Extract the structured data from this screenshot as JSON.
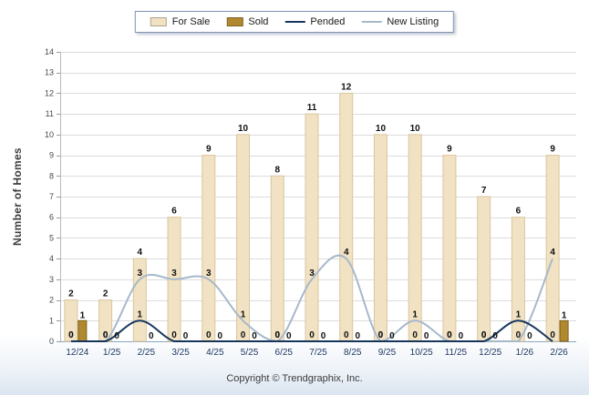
{
  "legend": {
    "items": [
      {
        "label": "For Sale",
        "type": "bar",
        "color": "#F1E2C3"
      },
      {
        "label": "Sold",
        "type": "bar",
        "color": "#B0882F"
      },
      {
        "label": "Pended",
        "type": "line",
        "color": "#16365C"
      },
      {
        "label": "New Listing",
        "type": "line",
        "color": "#A7B8CB"
      }
    ]
  },
  "footer": {
    "copyright": "Copyright © Trendgraphix, Inc."
  },
  "chart_data": {
    "type": "bar+line",
    "title": "",
    "categories": [
      "12/24",
      "1/25",
      "2/25",
      "3/25",
      "4/25",
      "5/25",
      "6/25",
      "7/25",
      "8/25",
      "9/25",
      "10/25",
      "11/25",
      "12/25",
      "1/26",
      "2/26"
    ],
    "series": [
      {
        "name": "For Sale",
        "type": "bar",
        "color": "#F1E2C3",
        "border": "#D9C69C",
        "values": [
          2,
          2,
          4,
          6,
          9,
          10,
          8,
          11,
          12,
          10,
          10,
          9,
          7,
          6,
          9
        ]
      },
      {
        "name": "Sold",
        "type": "bar",
        "color": "#B0882F",
        "border": "#7D6218",
        "values": [
          1,
          0,
          0,
          0,
          0,
          0,
          0,
          0,
          0,
          0,
          0,
          0,
          0,
          0,
          1
        ]
      },
      {
        "name": "Pended",
        "type": "line",
        "color": "#16365C",
        "values": [
          0,
          0,
          1,
          0,
          0,
          0,
          0,
          0,
          0,
          0,
          0,
          0,
          0,
          1,
          0
        ]
      },
      {
        "name": "New Listing",
        "type": "line",
        "color": "#A7B8CB",
        "values": [
          0,
          0,
          3,
          3,
          3,
          1,
          0,
          3,
          4,
          0,
          1,
          0,
          0,
          0,
          4
        ]
      }
    ],
    "xlabel": "",
    "ylabel": "Number of Homes",
    "ylim": [
      0,
      14
    ],
    "yticks": [
      0,
      1,
      2,
      3,
      4,
      5,
      6,
      7,
      8,
      9,
      10,
      11,
      12,
      13,
      14
    ],
    "grid": true,
    "legend_position": "top"
  }
}
